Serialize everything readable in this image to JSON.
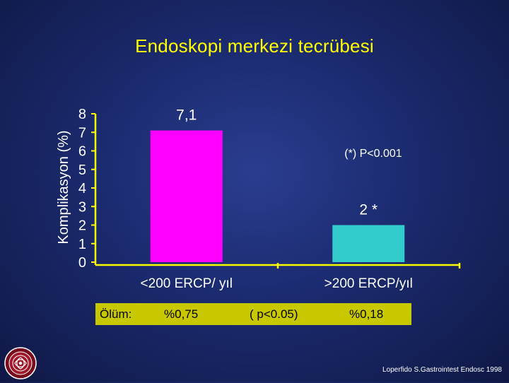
{
  "slide": {
    "title": "Endoskopi merkezi  tecrübesi",
    "citation": "Loperfido S.Gastrointest Endosc 1998"
  },
  "chart_data": {
    "type": "bar",
    "categories": [
      "<200 ERCP/ yıl",
      ">200 ERCP/yıl"
    ],
    "values": [
      7.1,
      2
    ],
    "data_labels": [
      "7,1",
      "2"
    ],
    "significance_marker": "*",
    "annotation": "(*) P<0.001",
    "ylabel": "Komplikasyon (%)",
    "ylim": [
      0,
      8
    ],
    "yticks": [
      0,
      1,
      2,
      3,
      4,
      5,
      6,
      7,
      8
    ],
    "bar_colors": [
      "#ff00ff",
      "#33cccc"
    ],
    "axis_color": "#ffff00",
    "grid": false,
    "legend": "none"
  },
  "mortality": {
    "label": "Ölüm:",
    "group1_value": "%0,75",
    "p_value": "( p<0.05)",
    "group2_value": "%0,18",
    "row_color": "#c8c800"
  },
  "colors": {
    "title": "#ffff00",
    "background": "#1b2a6e",
    "text": "#ffffff"
  },
  "icons": {
    "logo": "university-seal-icon"
  }
}
